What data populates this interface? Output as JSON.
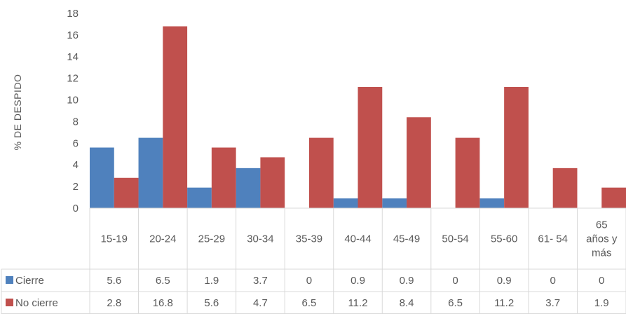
{
  "chart_data": {
    "type": "bar",
    "ylabel": "% DE DESPIDO",
    "ylim": [
      0,
      18
    ],
    "yticks": [
      "0",
      "2",
      "4",
      "6",
      "8",
      "10",
      "12",
      "14",
      "16",
      "18"
    ],
    "categories": [
      "15-19",
      "20-24",
      "25-29",
      "30-34",
      "35-39",
      "40-44",
      "45-49",
      "50-54",
      "55-60",
      "61- 54",
      "65 años y más"
    ],
    "category_lines": [
      [
        "15-19"
      ],
      [
        "20-24"
      ],
      [
        "25-29"
      ],
      [
        "30-34"
      ],
      [
        "35-39"
      ],
      [
        "40-44"
      ],
      [
        "45-49"
      ],
      [
        "50-54"
      ],
      [
        "55-60"
      ],
      [
        "61- 54"
      ],
      [
        "65",
        "años y",
        "más"
      ]
    ],
    "series": [
      {
        "name": "Cierre",
        "color": "#4f81bd",
        "values": [
          5.6,
          6.5,
          1.9,
          3.7,
          0,
          0.9,
          0.9,
          0,
          0.9,
          0,
          0
        ],
        "labels": [
          "5.6",
          "6.5",
          "1.9",
          "3.7",
          "0",
          "0.9",
          "0.9",
          "0",
          "0.9",
          "0",
          "0"
        ]
      },
      {
        "name": "No cierre",
        "color": "#c0504d",
        "values": [
          2.8,
          16.8,
          5.6,
          4.7,
          6.5,
          11.2,
          8.4,
          6.5,
          11.2,
          3.7,
          1.9
        ],
        "labels": [
          "2.8",
          "16.8",
          "5.6",
          "4.7",
          "6.5",
          "11.2",
          "8.4",
          "6.5",
          "11.2",
          "3.7",
          "1.9"
        ]
      }
    ],
    "grid": false,
    "legend": "data-table"
  }
}
